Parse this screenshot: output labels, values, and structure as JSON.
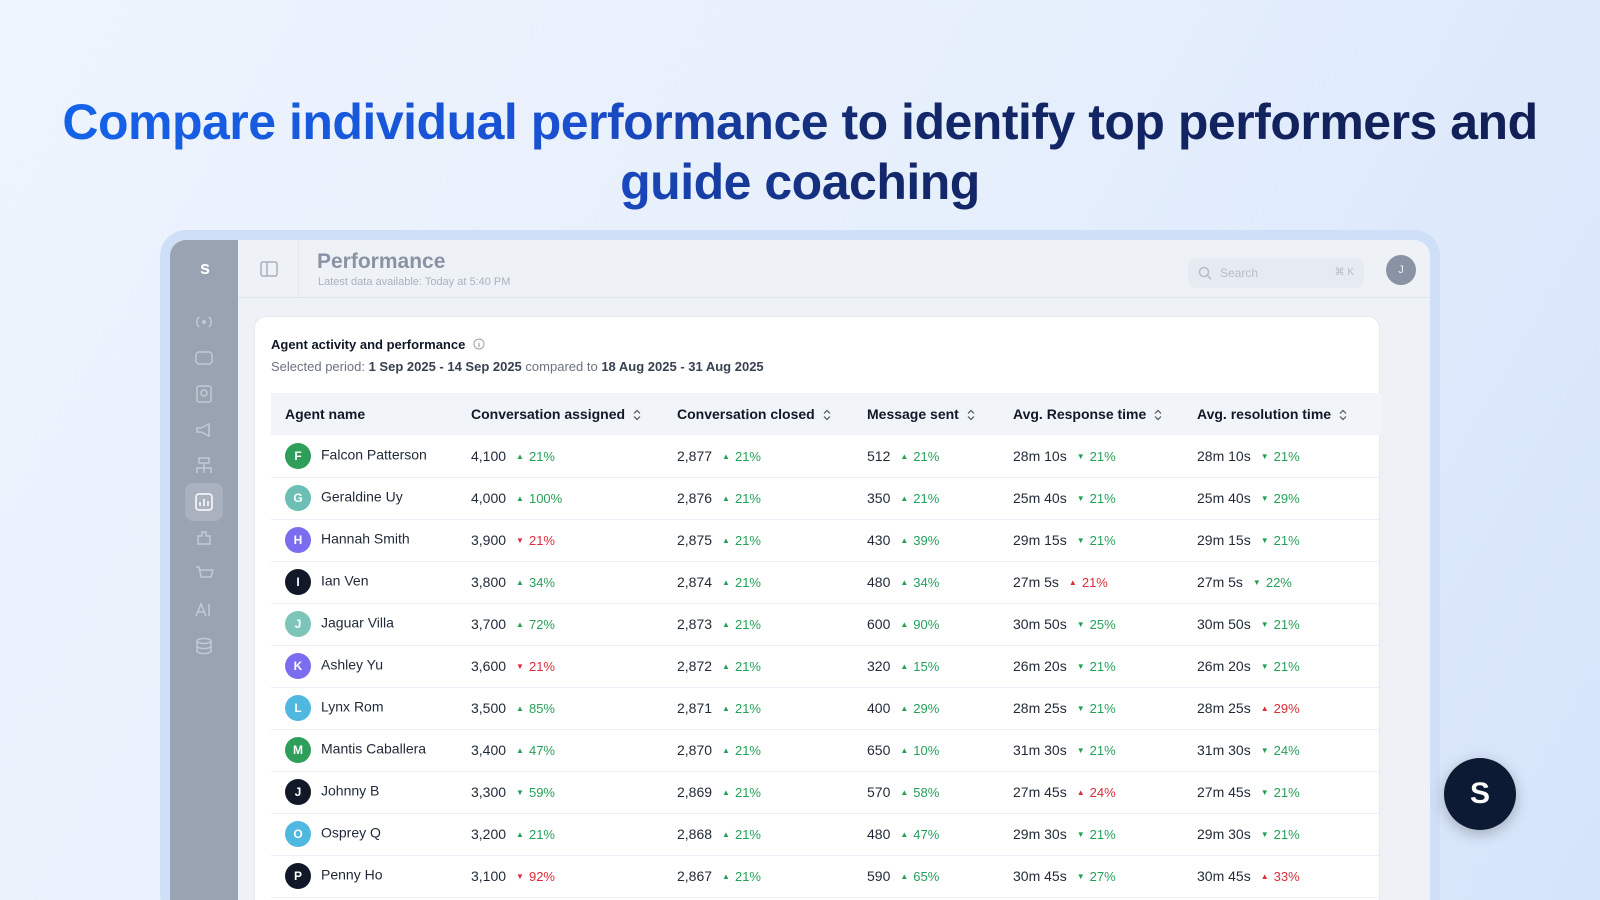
{
  "headline": "Compare individual performance to identify top performers and guide coaching",
  "app": {
    "logo": "s",
    "page_title": "Performance",
    "page_subtitle": "Latest data available: Today at 5:40 PM",
    "search_placeholder": "Search",
    "search_shortcut": "⌘ K",
    "user_initial": "J"
  },
  "card": {
    "title": "Agent activity and performance",
    "period_label": "Selected period:",
    "period": "1 Sep 2025 - 14 Sep 2025",
    "compared_label": "compared to",
    "compared_period": "18 Aug 2025 - 31 Aug 2025"
  },
  "table": {
    "headers": [
      "Agent name",
      "Conversation assigned",
      "Conversation closed",
      "Message sent",
      "Avg. Response time",
      "Avg. resolution time"
    ],
    "rows": [
      {
        "initial": "F",
        "avatar_color": "#2e9e5b",
        "name": "Falcon Patterson",
        "cells": [
          {
            "value": "4,100",
            "change": "21%",
            "trend": "up",
            "tone": "good"
          },
          {
            "value": "2,877",
            "change": "21%",
            "trend": "up",
            "tone": "good"
          },
          {
            "value": "512",
            "change": "21%",
            "trend": "up",
            "tone": "good"
          },
          {
            "value": "28m 10s",
            "change": "21%",
            "trend": "down",
            "tone": "good"
          },
          {
            "value": "28m 10s",
            "change": "21%",
            "trend": "down",
            "tone": "good"
          }
        ]
      },
      {
        "initial": "G",
        "avatar_color": "#6bbfb5",
        "name": "Geraldine Uy",
        "cells": [
          {
            "value": "4,000",
            "change": "100%",
            "trend": "up",
            "tone": "good"
          },
          {
            "value": "2,876",
            "change": "21%",
            "trend": "up",
            "tone": "good"
          },
          {
            "value": "350",
            "change": "21%",
            "trend": "up",
            "tone": "good"
          },
          {
            "value": "25m 40s",
            "change": "21%",
            "trend": "down",
            "tone": "good"
          },
          {
            "value": "25m 40s",
            "change": "29%",
            "trend": "down",
            "tone": "good"
          }
        ]
      },
      {
        "initial": "H",
        "avatar_color": "#7b6cf0",
        "name": "Hannah Smith",
        "cells": [
          {
            "value": "3,900",
            "change": "21%",
            "trend": "down",
            "tone": "bad"
          },
          {
            "value": "2,875",
            "change": "21%",
            "trend": "up",
            "tone": "good"
          },
          {
            "value": "430",
            "change": "39%",
            "trend": "up",
            "tone": "good"
          },
          {
            "value": "29m 15s",
            "change": "21%",
            "trend": "down",
            "tone": "good"
          },
          {
            "value": "29m 15s",
            "change": "21%",
            "trend": "down",
            "tone": "good"
          }
        ]
      },
      {
        "initial": "I",
        "avatar_color": "#111827",
        "name": "Ian Ven",
        "cells": [
          {
            "value": "3,800",
            "change": "34%",
            "trend": "up",
            "tone": "good"
          },
          {
            "value": "2,874",
            "change": "21%",
            "trend": "up",
            "tone": "good"
          },
          {
            "value": "480",
            "change": "34%",
            "trend": "up",
            "tone": "good"
          },
          {
            "value": "27m 5s",
            "change": "21%",
            "trend": "up",
            "tone": "bad"
          },
          {
            "value": "27m 5s",
            "change": "22%",
            "trend": "down",
            "tone": "good"
          }
        ]
      },
      {
        "initial": "J",
        "avatar_color": "#7cc5b8",
        "name": "Jaguar Villa",
        "cells": [
          {
            "value": "3,700",
            "change": "72%",
            "trend": "up",
            "tone": "good"
          },
          {
            "value": "2,873",
            "change": "21%",
            "trend": "up",
            "tone": "good"
          },
          {
            "value": "600",
            "change": "90%",
            "trend": "up",
            "tone": "good"
          },
          {
            "value": "30m 50s",
            "change": "25%",
            "trend": "down",
            "tone": "good"
          },
          {
            "value": "30m 50s",
            "change": "21%",
            "trend": "down",
            "tone": "good"
          }
        ]
      },
      {
        "initial": "K",
        "avatar_color": "#7b6cf0",
        "name": "Ashley Yu",
        "cells": [
          {
            "value": "3,600",
            "change": "21%",
            "trend": "down",
            "tone": "bad"
          },
          {
            "value": "2,872",
            "change": "21%",
            "trend": "up",
            "tone": "good"
          },
          {
            "value": "320",
            "change": "15%",
            "trend": "up",
            "tone": "good"
          },
          {
            "value": "26m 20s",
            "change": "21%",
            "trend": "down",
            "tone": "good"
          },
          {
            "value": "26m 20s",
            "change": "21%",
            "trend": "down",
            "tone": "good"
          }
        ]
      },
      {
        "initial": "L",
        "avatar_color": "#4fb8e0",
        "name": "Lynx Rom",
        "cells": [
          {
            "value": "3,500",
            "change": "85%",
            "trend": "up",
            "tone": "good"
          },
          {
            "value": "2,871",
            "change": "21%",
            "trend": "up",
            "tone": "good"
          },
          {
            "value": "400",
            "change": "29%",
            "trend": "up",
            "tone": "good"
          },
          {
            "value": "28m 25s",
            "change": "21%",
            "trend": "down",
            "tone": "good"
          },
          {
            "value": "28m 25s",
            "change": "29%",
            "trend": "up",
            "tone": "bad"
          }
        ]
      },
      {
        "initial": "M",
        "avatar_color": "#2e9e5b",
        "name": "Mantis Caballera",
        "cells": [
          {
            "value": "3,400",
            "change": "47%",
            "trend": "up",
            "tone": "good"
          },
          {
            "value": "2,870",
            "change": "21%",
            "trend": "up",
            "tone": "good"
          },
          {
            "value": "650",
            "change": "10%",
            "trend": "up",
            "tone": "good"
          },
          {
            "value": "31m 30s",
            "change": "21%",
            "trend": "down",
            "tone": "good"
          },
          {
            "value": "31m 30s",
            "change": "24%",
            "trend": "down",
            "tone": "good"
          }
        ]
      },
      {
        "initial": "J",
        "avatar_color": "#111827",
        "name": "Johnny B",
        "cells": [
          {
            "value": "3,300",
            "change": "59%",
            "trend": "down",
            "tone": "good"
          },
          {
            "value": "2,869",
            "change": "21%",
            "trend": "up",
            "tone": "good"
          },
          {
            "value": "570",
            "change": "58%",
            "trend": "up",
            "tone": "good"
          },
          {
            "value": "27m 45s",
            "change": "24%",
            "trend": "up",
            "tone": "bad"
          },
          {
            "value": "27m 45s",
            "change": "21%",
            "trend": "down",
            "tone": "good"
          }
        ]
      },
      {
        "initial": "O",
        "avatar_color": "#4fb8e0",
        "name": "Osprey Q",
        "cells": [
          {
            "value": "3,200",
            "change": "21%",
            "trend": "up",
            "tone": "good"
          },
          {
            "value": "2,868",
            "change": "21%",
            "trend": "up",
            "tone": "good"
          },
          {
            "value": "480",
            "change": "47%",
            "trend": "up",
            "tone": "good"
          },
          {
            "value": "29m 30s",
            "change": "21%",
            "trend": "down",
            "tone": "good"
          },
          {
            "value": "29m 30s",
            "change": "21%",
            "trend": "down",
            "tone": "good"
          }
        ]
      },
      {
        "initial": "P",
        "avatar_color": "#111827",
        "name": "Penny Ho",
        "cells": [
          {
            "value": "3,100",
            "change": "92%",
            "trend": "down",
            "tone": "bad"
          },
          {
            "value": "2,867",
            "change": "21%",
            "trend": "up",
            "tone": "good"
          },
          {
            "value": "590",
            "change": "65%",
            "trend": "up",
            "tone": "good"
          },
          {
            "value": "30m 45s",
            "change": "27%",
            "trend": "down",
            "tone": "good"
          },
          {
            "value": "30m 45s",
            "change": "33%",
            "trend": "up",
            "tone": "bad"
          }
        ]
      }
    ]
  },
  "badge": "S"
}
